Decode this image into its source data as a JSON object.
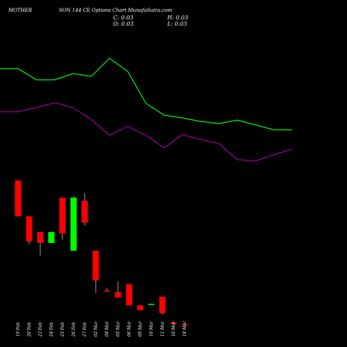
{
  "header": {
    "symbol": "MOTHER",
    "title": "SON 144 CE Options Chart MunafaSutra.com"
  },
  "ohlc": {
    "close_label": "C: 0.03",
    "open_label": "O: 0.03",
    "high_label": "H: 0.03",
    "low_label": "L: 0.03"
  },
  "colors": {
    "background": "#000000",
    "bullish": "#00ff00",
    "bearish": "#ff0000",
    "upper_line": "#00ff00",
    "lower_line": "#a000a0"
  },
  "chart_data": [
    {
      "type": "line",
      "series": [
        {
          "values": [
            99,
            99,
            115,
            115,
            106,
            110,
            84,
            103,
            149,
            166,
            170,
            175,
            178,
            173,
            180,
            187,
            187
          ]
        },
        {
          "values": [
            161,
            161,
            155,
            148,
            155,
            172,
            195,
            182,
            195,
            213,
            194,
            201,
            207,
            230,
            232,
            223,
            215
          ]
        }
      ]
    },
    {
      "type": "candlestick",
      "categories": [
        "19 Feb",
        "20 Feb",
        "23 Feb",
        "24 Feb",
        "25 Feb",
        "26 Feb",
        "27 Feb",
        "02 Mar",
        "04 Mar",
        "05 Mar",
        "06 Mar",
        "09 Mar",
        "10 Mar",
        "11 Mar",
        "16 Mar",
        "18 Mar"
      ],
      "candles": [
        {
          "open": 8.0,
          "high": 8.0,
          "low": 5.7,
          "close": 5.7,
          "dir": "down"
        },
        {
          "open": 5.7,
          "high": 5.7,
          "low": 3.9,
          "close": 4.1,
          "dir": "down"
        },
        {
          "open": 4.7,
          "high": 4.7,
          "low": 3.2,
          "close": 4.0,
          "dir": "down"
        },
        {
          "open": 4.0,
          "high": 4.7,
          "low": 4.0,
          "close": 4.7,
          "dir": "up"
        },
        {
          "open": 6.9,
          "high": 6.9,
          "low": 4.2,
          "close": 4.6,
          "dir": "down"
        },
        {
          "open": 3.5,
          "high": 7.0,
          "low": 3.5,
          "close": 6.9,
          "dir": "up"
        },
        {
          "open": 6.7,
          "high": 7.2,
          "low": 5.1,
          "close": 5.3,
          "dir": "down"
        },
        {
          "open": 3.5,
          "high": 3.5,
          "low": 0.8,
          "close": 1.6,
          "dir": "down"
        },
        {
          "open": 0.95,
          "high": 1.1,
          "low": 0.85,
          "close": 0.9,
          "dir": "down"
        },
        {
          "open": 0.85,
          "high": 1.55,
          "low": 0.5,
          "close": 0.5,
          "dir": "down"
        },
        {
          "open": 1.35,
          "high": 1.35,
          "low": 0.0,
          "close": 0.0,
          "dir": "down"
        },
        {
          "open": 0.0,
          "high": 0.0,
          "low": -0.3,
          "close": -0.3,
          "dir": "down"
        },
        {
          "open": 0.03,
          "high": 0.1,
          "low": 0.03,
          "close": 0.1,
          "dir": "up"
        },
        {
          "open": 0.55,
          "high": 0.55,
          "low": -0.6,
          "close": -0.5,
          "dir": "down"
        },
        {
          "open": -1.1,
          "high": -1.1,
          "low": -1.2,
          "close": -1.2,
          "dir": "down"
        },
        {
          "open": -1.2,
          "high": -1.2,
          "low": -1.25,
          "close": -1.25,
          "dir": "down"
        }
      ]
    }
  ]
}
